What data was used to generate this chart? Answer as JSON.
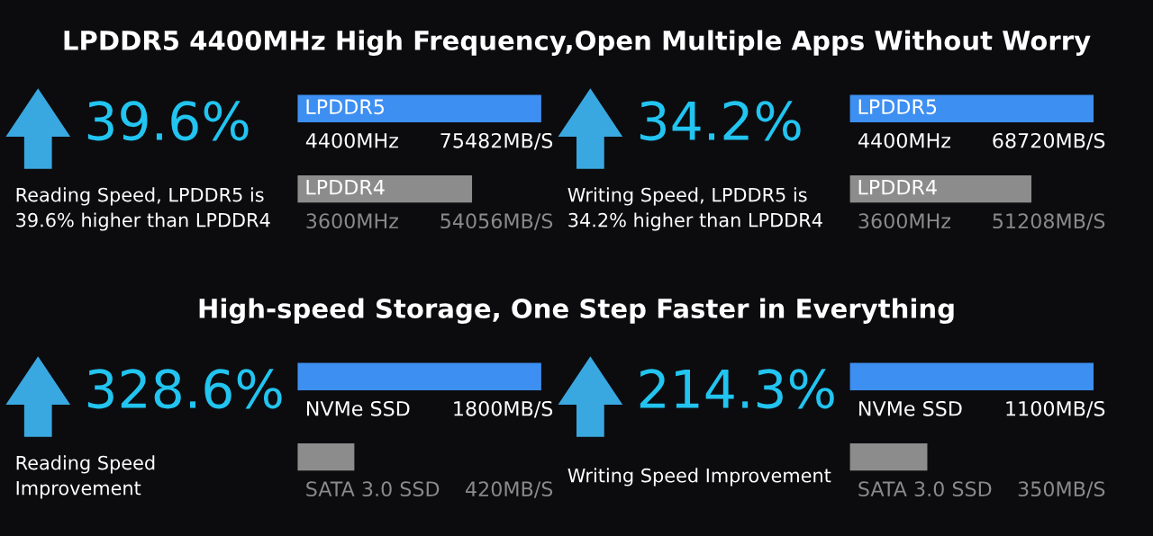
{
  "chart_data": [
    {
      "type": "bar",
      "orientation": "horizontal",
      "title": "LPDDR5 4400MHz High Frequency,Open Multiple Apps Without Worry",
      "categories": [
        "LPDDR5",
        "LPDDR4"
      ],
      "values": [
        75482,
        54056
      ],
      "colors": [
        "#3d8ff2",
        "#8c8c8c"
      ],
      "value_labels": [
        "75482MB/S",
        "54056MB/S"
      ],
      "annotations": [
        "39.6%",
        "Reading Speed, LPDDR5 is 39.6% higher than LPDDR4",
        "4400MHz",
        "3600MHz"
      ]
    },
    {
      "type": "bar",
      "orientation": "horizontal",
      "categories": [
        "LPDDR5",
        "LPDDR4"
      ],
      "values": [
        68720,
        51208
      ],
      "colors": [
        "#3d8ff2",
        "#8c8c8c"
      ],
      "value_labels": [
        "68720MB/S",
        "51208MB/S"
      ],
      "annotations": [
        "34.2%",
        "Writing Speed, LPDDR5 is 34.2% higher than LPDDR4",
        "4400MHz",
        "3600MHz"
      ]
    },
    {
      "type": "bar",
      "orientation": "horizontal",
      "title": "High-speed Storage, One Step Faster in Everything",
      "categories": [
        "NVMe SSD",
        "SATA 3.0 SSD"
      ],
      "values": [
        1800,
        420
      ],
      "colors": [
        "#3d8ff2",
        "#8c8c8c"
      ],
      "value_labels": [
        "1800MB/S",
        "420MB/S"
      ],
      "annotations": [
        "328.6%",
        "Reading Speed Improvement"
      ]
    },
    {
      "type": "bar",
      "orientation": "horizontal",
      "categories": [
        "NVMe SSD",
        "SATA 3.0 SSD"
      ],
      "values": [
        1100,
        350
      ],
      "colors": [
        "#3d8ff2",
        "#8c8c8c"
      ],
      "value_labels": [
        "1100MB/S",
        "350MB/S"
      ],
      "annotations": [
        "214.3%",
        "Writing Speed Improvement"
      ]
    }
  ]
}
